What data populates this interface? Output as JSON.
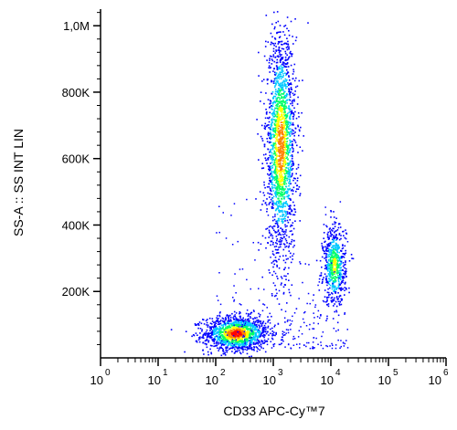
{
  "chart_data": {
    "type": "scatter",
    "subtype": "flow-cytometry-density-dot-plot",
    "xlabel": "CD33 APC-Cy™7",
    "ylabel": "SS-A :: SS INT LIN",
    "x_scale": "log",
    "x_ticks": [
      {
        "base": "10",
        "exp": "0",
        "value": 1
      },
      {
        "base": "10",
        "exp": "1",
        "value": 10
      },
      {
        "base": "10",
        "exp": "2",
        "value": 100
      },
      {
        "base": "10",
        "exp": "3",
        "value": 1000
      },
      {
        "base": "10",
        "exp": "4",
        "value": 10000
      },
      {
        "base": "10",
        "exp": "5",
        "value": 100000
      },
      {
        "base": "10",
        "exp": "6",
        "value": 1000000
      }
    ],
    "y_scale": "linear",
    "y_ticks": [
      {
        "label": "200K",
        "value": 200000
      },
      {
        "label": "400K",
        "value": 400000
      },
      {
        "label": "600K",
        "value": 600000
      },
      {
        "label": "800K",
        "value": 800000
      },
      {
        "label": "1,0M",
        "value": 1000000
      }
    ],
    "xlim": [
      1,
      1000000
    ],
    "ylim": [
      0,
      1050000
    ],
    "grid": false,
    "colormap": [
      "#0000ff",
      "#00c8ff",
      "#00ff66",
      "#ffff00",
      "#ff8000",
      "#ff0000"
    ],
    "populations": [
      {
        "cx_log10": 2.35,
        "cy": 75000,
        "sx_log10": 0.28,
        "sy": 26000,
        "relative_density": 1.0
      },
      {
        "cx_log10": 3.12,
        "cy": 640000,
        "sx_log10": 0.13,
        "sy": 170000,
        "relative_density": 0.85
      },
      {
        "cx_log10": 4.05,
        "cy": 280000,
        "sx_log10": 0.1,
        "sy": 60000,
        "relative_density": 0.5
      }
    ]
  }
}
